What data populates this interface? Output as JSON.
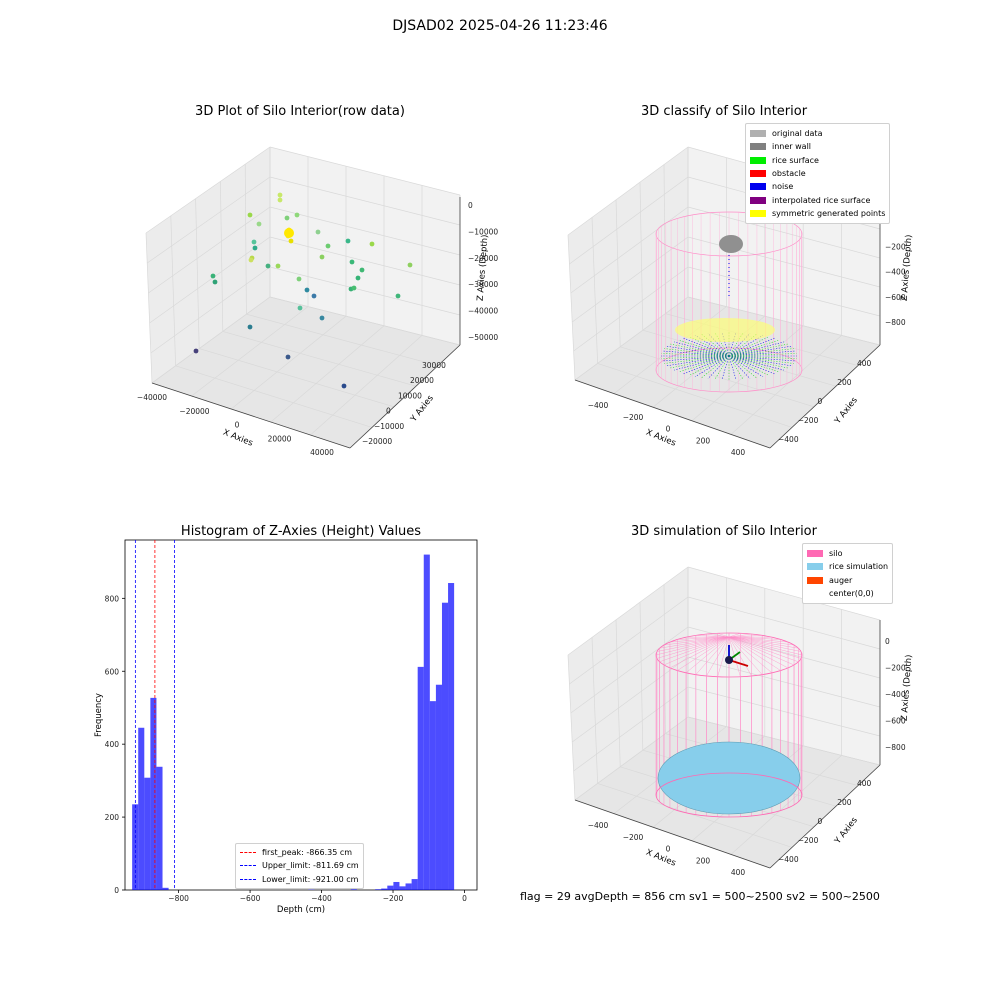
{
  "suptitle": "DJSAD02 2025-04-26 11:23:46",
  "panels": {
    "raw": {
      "title": "3D Plot of Silo Interior(row data)",
      "xlabel": "X Axies",
      "ylabel": "Y Axies",
      "zlabel": "Z Axies (Depth)",
      "xticks": [
        "−40000",
        "−20000",
        "0",
        "20000",
        "40000"
      ],
      "yticks": [
        "−20000",
        "−10000",
        "0",
        "10000",
        "20000",
        "30000"
      ],
      "zticks": [
        "0",
        "−10000",
        "−20000",
        "−30000",
        "−40000",
        "−50000"
      ]
    },
    "classify": {
      "title": "3D classify of Silo Interior",
      "xlabel": "X Axies",
      "ylabel": "Y Axies",
      "zlabel": "Z Axies (Depth)",
      "xticks": [
        "−400",
        "−200",
        "0",
        "200",
        "400"
      ],
      "yticks": [
        "−400",
        "−200",
        "0",
        "200",
        "400"
      ],
      "zticks": [
        "0",
        "−200",
        "−400",
        "−600",
        "−800"
      ],
      "legend": [
        {
          "label": "original data",
          "color": "#b0b0b0"
        },
        {
          "label": "inner wall",
          "color": "#808080"
        },
        {
          "label": "rice surface",
          "color": "#00ee00"
        },
        {
          "label": "obstacle",
          "color": "#ff0000"
        },
        {
          "label": "noise",
          "color": "#0000ee"
        },
        {
          "label": "interpolated rice surface",
          "color": "#800080"
        },
        {
          "label": "symmetric generated points",
          "color": "#ffff00"
        }
      ]
    },
    "simulation": {
      "title": "3D simulation of Silo Interior",
      "xlabel": "X Axies",
      "ylabel": "Y Axies",
      "zlabel": "Z Axies (Depth)",
      "xticks": [
        "−400",
        "−200",
        "0",
        "200",
        "400"
      ],
      "yticks": [
        "−400",
        "−200",
        "0",
        "200",
        "400"
      ],
      "zticks": [
        "0",
        "−200",
        "−400",
        "−600",
        "−800"
      ],
      "legend": [
        {
          "label": "silo",
          "color": "#ff69b4"
        },
        {
          "label": "rice simulation",
          "color": "#87ceeb"
        },
        {
          "label": "auger",
          "color": "#ff4500"
        },
        {
          "label": "center(0,0)",
          "color": ""
        }
      ]
    }
  },
  "chart_data": {
    "type": "bar",
    "title": "Histogram of Z-Axies (Height) Values",
    "xlabel": "Depth (cm)",
    "ylabel": "Frequency",
    "xlim": [
      -950,
      35
    ],
    "ylim": [
      0,
      960
    ],
    "xticks": [
      -800,
      -600,
      -400,
      -200,
      0
    ],
    "yticks": [
      0,
      200,
      400,
      600,
      800
    ],
    "bar_color": "#0000ff",
    "bins": [
      {
        "x0": -930,
        "x1": -913,
        "count": 235
      },
      {
        "x0": -913,
        "x1": -896,
        "count": 445
      },
      {
        "x0": -896,
        "x1": -879,
        "count": 308
      },
      {
        "x0": -879,
        "x1": -862,
        "count": 527
      },
      {
        "x0": -862,
        "x1": -845,
        "count": 338
      },
      {
        "x0": -845,
        "x1": -828,
        "count": 6
      },
      {
        "x0": -437,
        "x1": -420,
        "count": 1
      },
      {
        "x0": -318,
        "x1": -301,
        "count": 2
      },
      {
        "x0": -250,
        "x1": -233,
        "count": 2
      },
      {
        "x0": -233,
        "x1": -216,
        "count": 4
      },
      {
        "x0": -216,
        "x1": -199,
        "count": 12
      },
      {
        "x0": -199,
        "x1": -182,
        "count": 22
      },
      {
        "x0": -182,
        "x1": -165,
        "count": 10
      },
      {
        "x0": -165,
        "x1": -148,
        "count": 18
      },
      {
        "x0": -148,
        "x1": -131,
        "count": 30
      },
      {
        "x0": -131,
        "x1": -114,
        "count": 612
      },
      {
        "x0": -114,
        "x1": -97,
        "count": 920
      },
      {
        "x0": -97,
        "x1": -80,
        "count": 518
      },
      {
        "x0": -80,
        "x1": -63,
        "count": 563
      },
      {
        "x0": -63,
        "x1": -46,
        "count": 788
      },
      {
        "x0": -46,
        "x1": -29,
        "count": 842
      }
    ],
    "vlines": [
      {
        "label": "first_peak: -866.35 cm",
        "x": -866.35,
        "color": "#ff0000"
      },
      {
        "label": "Upper_limit: -811.69 cm",
        "x": -811.69,
        "color": "#0000ff"
      },
      {
        "label": "Lower_limit: -921.00 cm",
        "x": -921.0,
        "color": "#0000ff"
      }
    ]
  },
  "footer": "flag = 29   avgDepth = 856 cm  sv1 = 500~2500  sv2 = 500~2500"
}
